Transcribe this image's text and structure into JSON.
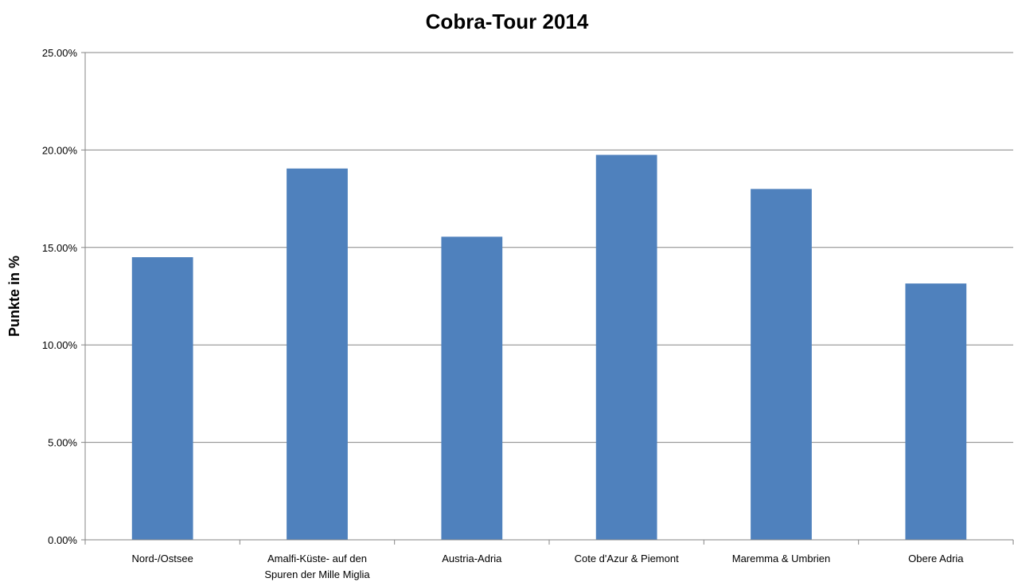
{
  "chart_data": {
    "type": "bar",
    "title": "Cobra-Tour 2014",
    "xlabel": "",
    "ylabel": "Punkte in %",
    "categories": [
      [
        "Nord-/Ostsee"
      ],
      [
        "Amalfi-Küste- auf den",
        "Spuren der Mille Miglia"
      ],
      [
        "Austria-Adria"
      ],
      [
        "Cote d'Azur & Piemont"
      ],
      [
        "Maremma & Umbrien"
      ],
      [
        "Obere Adria"
      ]
    ],
    "values": [
      14.5,
      19.05,
      15.55,
      19.75,
      18.0,
      13.15
    ],
    "ylim": [
      0,
      25
    ],
    "yticks": [
      "0.00%",
      "5.00%",
      "10.00%",
      "15.00%",
      "20.00%",
      "25.00%"
    ],
    "grid": true,
    "legend": "none",
    "bar_color": "#4F81BD"
  }
}
